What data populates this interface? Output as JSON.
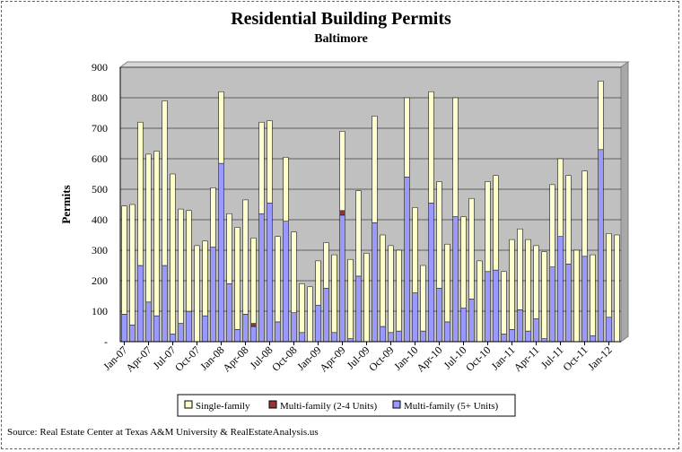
{
  "colors": {
    "single_family": "#ffffcc",
    "multi_2_4": "#993333",
    "multi_5_plus": "#9999ff",
    "plot_bg": "#c0c0c0"
  },
  "source": "Source: Real Estate Center at Texas A&M University & RealEstateAnalysis.us",
  "chart_data": {
    "type": "bar",
    "stacked": true,
    "title": "Residential Building Permits",
    "subtitle": "Baltimore",
    "ylabel": "Permits",
    "xlabel": "",
    "ylim": [
      0,
      900
    ],
    "yticks": [
      "-",
      "100",
      "200",
      "300",
      "400",
      "500",
      "600",
      "700",
      "800",
      "900"
    ],
    "grid": true,
    "legend_position": "bottom",
    "x": [
      "Jan-07",
      "Feb-07",
      "Mar-07",
      "Apr-07",
      "May-07",
      "Jun-07",
      "Jul-07",
      "Aug-07",
      "Sep-07",
      "Oct-07",
      "Nov-07",
      "Dec-07",
      "Jan-08",
      "Feb-08",
      "Mar-08",
      "Apr-08",
      "May-08",
      "Jun-08",
      "Jul-08",
      "Aug-08",
      "Sep-08",
      "Oct-08",
      "Nov-08",
      "Dec-08",
      "Jan-09",
      "Feb-09",
      "Mar-09",
      "Apr-09",
      "May-09",
      "Jun-09",
      "Jul-09",
      "Aug-09",
      "Sep-09",
      "Oct-09",
      "Nov-09",
      "Dec-09",
      "Jan-10",
      "Feb-10",
      "Mar-10",
      "Apr-10",
      "May-10",
      "Jun-10",
      "Jul-10",
      "Aug-10",
      "Sep-10",
      "Oct-10",
      "Nov-10",
      "Dec-10",
      "Jan-11",
      "Feb-11",
      "Mar-11",
      "Apr-11",
      "May-11",
      "Jun-11",
      "Jul-11",
      "Aug-11",
      "Sep-11",
      "Oct-11",
      "Nov-11",
      "Dec-11",
      "Jan-12",
      "Feb-12"
    ],
    "xtick_labels": [
      "Jan-07",
      "Apr-07",
      "Jul-07",
      "Oct-07",
      "Jan-08",
      "Apr-08",
      "Jul-08",
      "Oct-08",
      "Jan-09",
      "Apr-09",
      "Jul-09",
      "Oct-09",
      "Jan-10",
      "Apr-10",
      "Jul-10",
      "Oct-10",
      "Jan-11",
      "Apr-11",
      "Jul-11",
      "Oct-11",
      "Jan-12"
    ],
    "series": [
      {
        "name": "Multi-family (5+ Units)",
        "values": [
          90,
          55,
          250,
          130,
          85,
          250,
          25,
          60,
          100,
          0,
          85,
          310,
          585,
          190,
          40,
          90,
          50,
          420,
          455,
          65,
          395,
          95,
          30,
          0,
          120,
          175,
          30,
          415,
          10,
          215,
          0,
          390,
          50,
          30,
          35,
          540,
          160,
          35,
          455,
          175,
          65,
          410,
          110,
          140,
          0,
          230,
          235,
          25,
          40,
          105,
          35,
          75,
          10,
          245,
          345,
          255,
          0,
          280,
          20,
          630,
          80,
          0
        ]
      },
      {
        "name": "Multi-family (2-4 Units)",
        "values": [
          0,
          0,
          0,
          0,
          0,
          0,
          0,
          0,
          0,
          0,
          0,
          0,
          0,
          0,
          0,
          0,
          10,
          0,
          0,
          0,
          0,
          0,
          0,
          0,
          0,
          0,
          0,
          15,
          0,
          0,
          0,
          0,
          0,
          0,
          0,
          0,
          0,
          0,
          0,
          0,
          0,
          0,
          0,
          0,
          0,
          0,
          0,
          0,
          0,
          0,
          0,
          0,
          0,
          0,
          0,
          0,
          0,
          0,
          0,
          0,
          0,
          0
        ]
      },
      {
        "name": "Single-family",
        "values": [
          355,
          395,
          470,
          485,
          540,
          540,
          525,
          375,
          330,
          315,
          245,
          195,
          235,
          230,
          335,
          375,
          280,
          300,
          270,
          280,
          210,
          265,
          160,
          180,
          145,
          150,
          255,
          260,
          260,
          280,
          290,
          350,
          300,
          285,
          265,
          260,
          280,
          215,
          365,
          350,
          255,
          390,
          300,
          330,
          265,
          295,
          310,
          205,
          295,
          265,
          300,
          240,
          285,
          270,
          255,
          290,
          300,
          280,
          265,
          225,
          275,
          350
        ]
      }
    ]
  }
}
